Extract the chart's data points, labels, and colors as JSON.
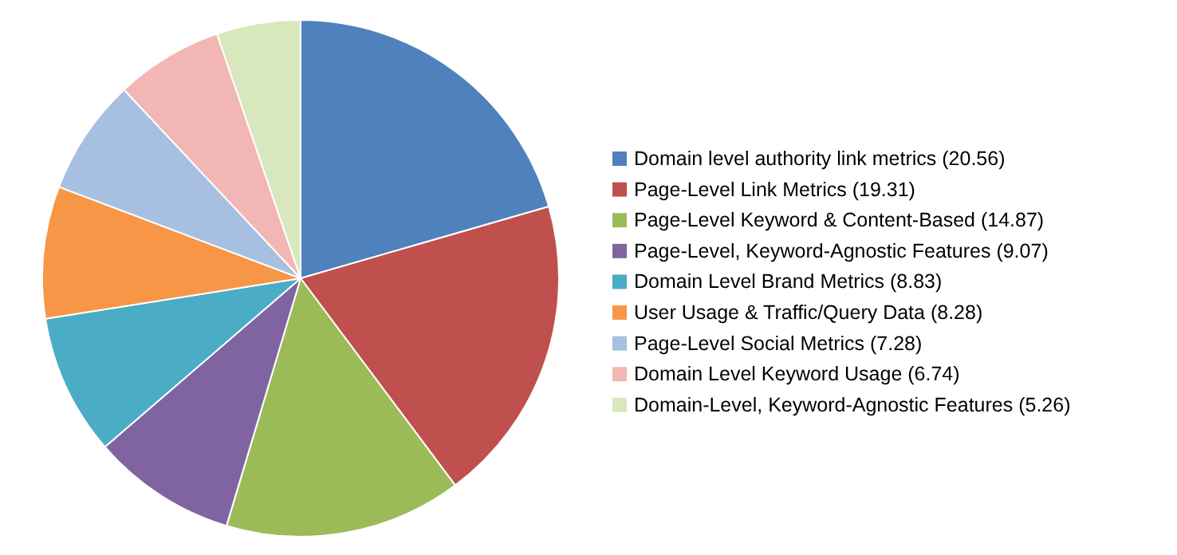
{
  "chart_data": {
    "type": "pie",
    "legend": "right",
    "categories": [
      "Domain level authority link metrics",
      "Page-Level Link Metrics",
      "Page-Level Keyword & Content-Based",
      "Page-Level, Keyword-Agnostic Features",
      "Domain Level Brand Metrics",
      "User Usage & Traffic/Query Data",
      "Page-Level Social Metrics",
      "Domain Level Keyword Usage",
      "Domain-Level, Keyword-Agnostic Features"
    ],
    "values": [
      20.56,
      19.31,
      14.87,
      9.07,
      8.83,
      8.28,
      7.28,
      6.74,
      5.26
    ],
    "value_labels": [
      "(20.56)",
      "(19.31)",
      "(14.87)",
      "(9.07)",
      "(8.83)",
      "(8.28)",
      "(7.28)",
      "(6.74)",
      "(5.26)"
    ],
    "colors": [
      "#4f81bd",
      "#c0504d",
      "#9bbb59",
      "#8064a2",
      "#4bacc6",
      "#f79646",
      "#a7bfe0",
      "#f2b6b4",
      "#d9e8bc"
    ]
  }
}
